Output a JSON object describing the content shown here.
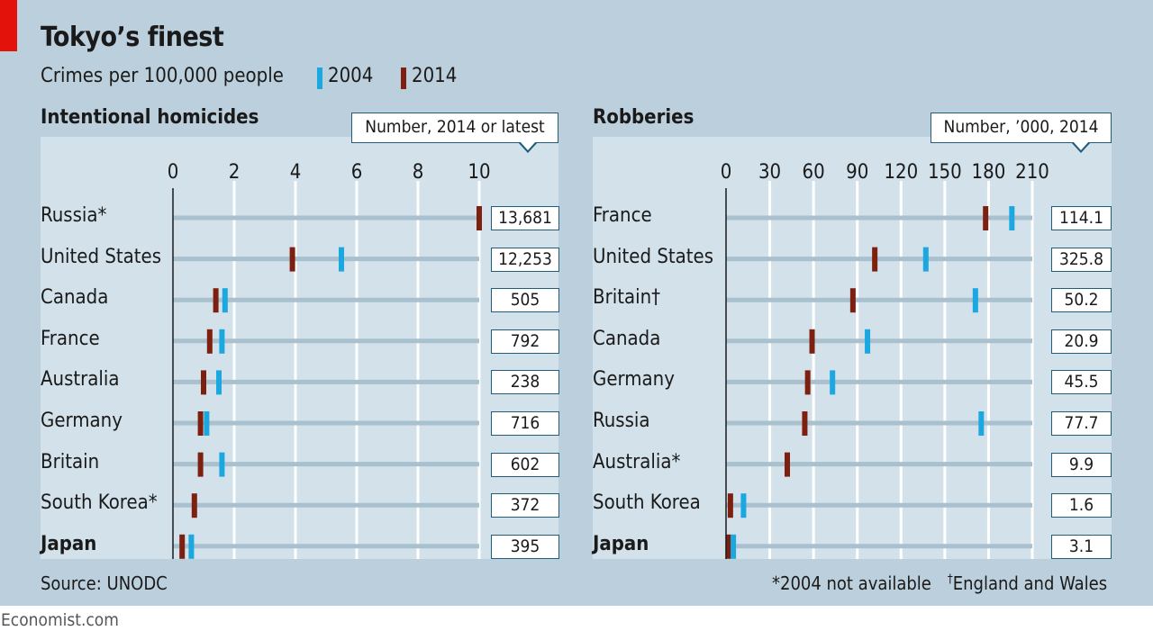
{
  "title": "Tokyo’s finest",
  "subtitle": "Crimes per 100,000 people",
  "legend": [
    {
      "label": "2004",
      "color": "#1ba7e0"
    },
    {
      "label": "2014",
      "color": "#7d2010"
    }
  ],
  "source": "Source: UNODC",
  "footnote_star": "*2004 not available",
  "footnote_dagger_mark": "†",
  "footnote_dagger": "England and Wales",
  "brand": "Economist.com",
  "colors": {
    "c2004": "#1ba7e0",
    "c2014": "#7d2010",
    "background": "#bccfdc",
    "panel": "#d3e1ea",
    "accent_red": "#e3120b"
  },
  "chart_data": [
    {
      "type": "dot-range",
      "title": "Intentional homicides",
      "callout": "Number, 2014 or latest",
      "xlim": [
        0,
        10
      ],
      "ticks": [
        "0",
        "2",
        "4",
        "6",
        "8",
        "10"
      ],
      "tick_values": [
        0,
        2,
        4,
        6,
        8,
        10
      ],
      "grid": true,
      "categories": [
        "Russia*",
        "United States",
        "Canada",
        "France",
        "Australia",
        "Germany",
        "Britain",
        "South Korea*",
        "Japan"
      ],
      "bold_categories": [
        "Japan"
      ],
      "series": [
        {
          "name": "2004",
          "values": [
            null,
            5.5,
            1.7,
            1.6,
            1.5,
            1.1,
            1.6,
            null,
            0.6
          ]
        },
        {
          "name": "2014",
          "values": [
            10.0,
            3.9,
            1.4,
            1.2,
            1.0,
            0.9,
            0.9,
            0.7,
            0.3
          ]
        }
      ],
      "numbers": [
        "13,681",
        "12,253",
        "505",
        "792",
        "238",
        "716",
        "602",
        "372",
        "395"
      ]
    },
    {
      "type": "dot-range",
      "title": "Robberies",
      "callout": "Number, ’000, 2014",
      "xlim": [
        0,
        210
      ],
      "ticks": [
        "0",
        "30",
        "60",
        "90",
        "120",
        "150",
        "180",
        "210"
      ],
      "tick_values": [
        0,
        30,
        60,
        90,
        120,
        150,
        180,
        210
      ],
      "grid": true,
      "categories": [
        "France",
        "United States",
        "Britain†",
        "Canada",
        "Germany",
        "Russia",
        "Australia*",
        "South Korea",
        "Japan"
      ],
      "bold_categories": [
        "Japan"
      ],
      "series": [
        {
          "name": "2004",
          "values": [
            196,
            137,
            171,
            97,
            73,
            175,
            null,
            12,
            5
          ]
        },
        {
          "name": "2014",
          "values": [
            178,
            102,
            87,
            59,
            56,
            54,
            42,
            3,
            1.5
          ]
        }
      ],
      "numbers": [
        "114.1",
        "325.8",
        "50.2",
        "20.9",
        "45.5",
        "77.7",
        "9.9",
        "1.6",
        "3.1"
      ]
    }
  ]
}
